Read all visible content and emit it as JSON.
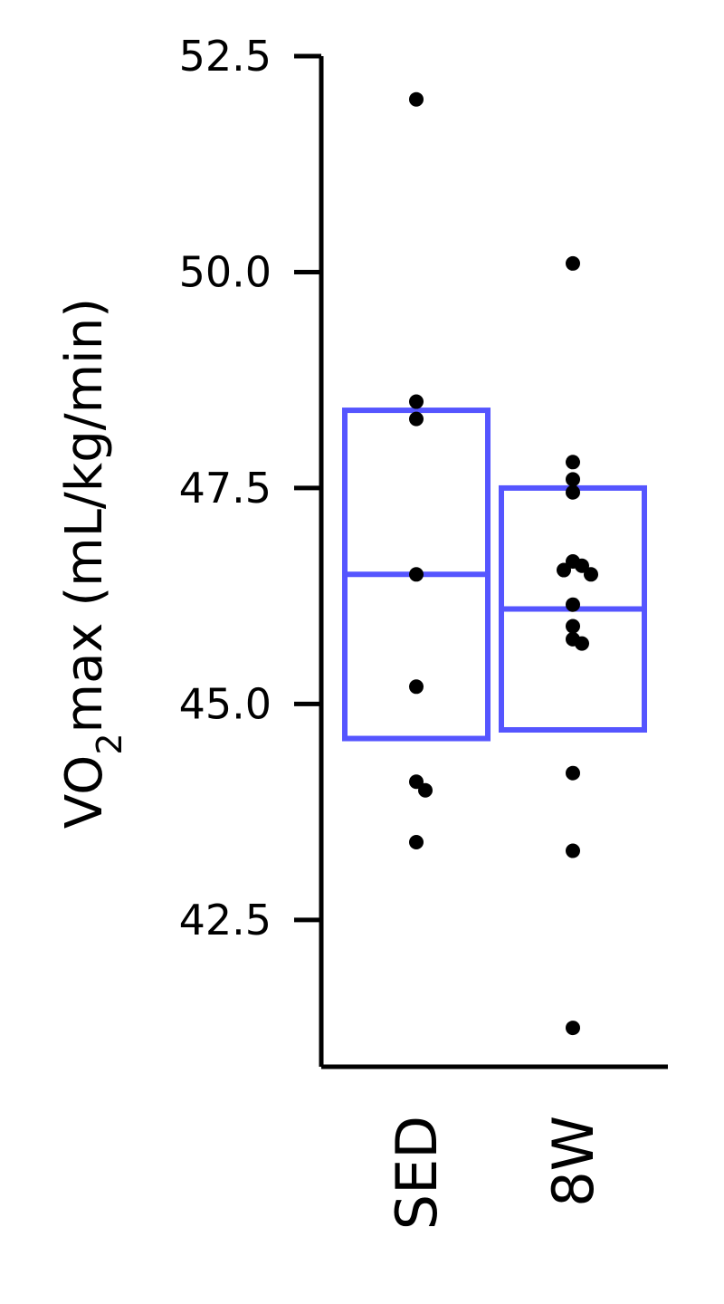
{
  "chart_data": {
    "type": "box",
    "ylabel": {
      "prefix": "VO",
      "subscript": "2",
      "suffix": "max (mL/kg/min)"
    },
    "ylim": [
      40.8,
      52.5
    ],
    "yticks": [
      42.5,
      45.0,
      47.5,
      50.0,
      52.5
    ],
    "ytick_labels": [
      "42.5",
      "45.0",
      "47.5",
      "50.0",
      "52.5"
    ],
    "categories": [
      "SED",
      "8W"
    ],
    "box_color": "#5555ff",
    "point_color": "#000000",
    "groups": [
      {
        "name": "SED",
        "q1": 44.6,
        "median": 46.5,
        "q3": 48.4,
        "points": [
          52.0,
          48.5,
          48.3,
          46.5,
          45.2,
          44.1,
          44.0,
          43.4
        ]
      },
      {
        "name": "8W",
        "q1": 44.7,
        "median": 46.1,
        "q3": 47.5,
        "points": [
          50.1,
          47.8,
          47.6,
          47.45,
          46.65,
          46.6,
          46.55,
          46.5,
          46.15,
          45.9,
          45.75,
          45.7,
          44.2,
          43.3,
          41.25
        ]
      }
    ]
  }
}
